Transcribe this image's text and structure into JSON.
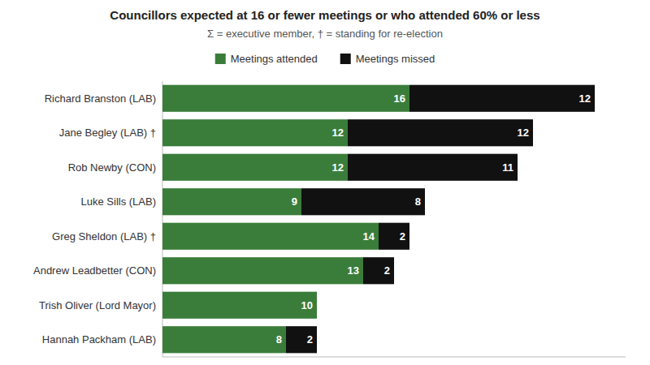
{
  "chart_data": {
    "type": "bar",
    "orientation": "horizontal",
    "stacked": true,
    "title": "Councillors expected at 16 or fewer meetings or who attended 60% or less",
    "subtitle": "Σ = executive member, † = standing for re-election",
    "categories": [
      "Richard Branston (LAB)",
      "Jane Begley (LAB) †",
      "Rob Newby (CON)",
      "Luke Sills (LAB)",
      "Greg Sheldon (LAB) †",
      "Andrew Leadbetter (CON)",
      "Trish Oliver (Lord Mayor)",
      "Hannah Packham (LAB)"
    ],
    "series": [
      {
        "name": "Meetings attended",
        "color": "#3a7d3a",
        "values": [
          16,
          12,
          12,
          9,
          14,
          13,
          10,
          8
        ]
      },
      {
        "name": "Meetings missed",
        "color": "#111111",
        "values": [
          12,
          12,
          11,
          8,
          2,
          2,
          0,
          2
        ]
      }
    ],
    "xlim": [
      0,
      30
    ],
    "grid": false,
    "legend": "top",
    "data_labels": true,
    "tick_labels": "y"
  }
}
